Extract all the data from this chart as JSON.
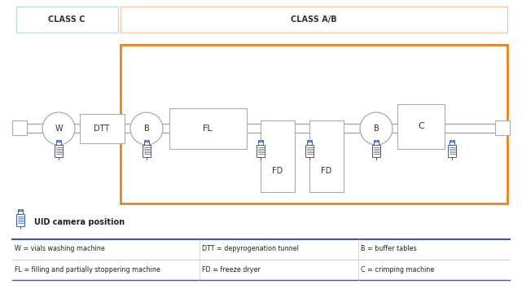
{
  "bg_color": "#ffffff",
  "class_c_label": "CLASS C",
  "class_ab_label": "CLASS A/B",
  "orange_color": "#E8821A",
  "blue_color": "#3A5BA0",
  "light_blue_color": "#BADDE8",
  "light_orange_color": "#F5C9A0",
  "edge_color": "#AAAAAA",
  "dark_text": "#333333",
  "legend_items": [
    [
      "W = vials washing machine",
      "DTT = depyrogenation tunnel",
      "B = buffer tables"
    ],
    [
      "FL = filling and partially stoppering machine",
      "FD = freeze dryer",
      "C = crimping machine"
    ]
  ]
}
